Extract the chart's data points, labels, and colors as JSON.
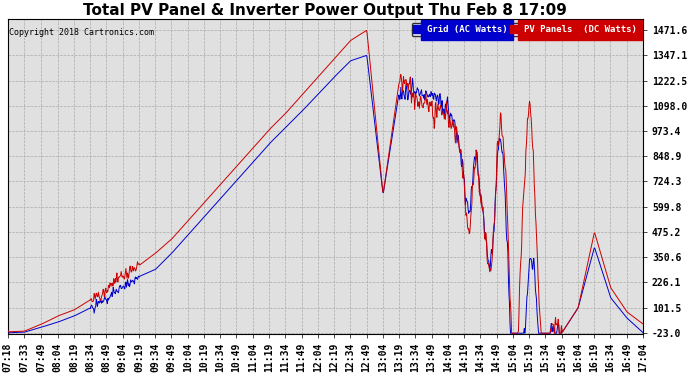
{
  "title": "Total PV Panel & Inverter Power Output Thu Feb 8 17:09",
  "copyright": "Copyright 2018 Cartronics.com",
  "legend_grid": "Grid (AC Watts)",
  "legend_pv": "PV Panels  (DC Watts)",
  "yticks": [
    1471.6,
    1347.1,
    1222.5,
    1098.0,
    973.4,
    848.9,
    724.3,
    599.8,
    475.2,
    350.6,
    226.1,
    101.5,
    -23.0
  ],
  "xtick_labels": [
    "07:18",
    "07:33",
    "07:49",
    "08:04",
    "08:19",
    "08:34",
    "08:49",
    "09:04",
    "09:19",
    "09:34",
    "09:49",
    "10:04",
    "10:19",
    "10:34",
    "10:49",
    "11:04",
    "11:19",
    "11:34",
    "11:49",
    "12:04",
    "12:19",
    "12:34",
    "12:49",
    "13:04",
    "13:19",
    "13:34",
    "13:49",
    "14:04",
    "14:19",
    "14:34",
    "14:49",
    "15:04",
    "15:19",
    "15:34",
    "15:49",
    "16:04",
    "16:19",
    "16:34",
    "16:49",
    "17:04"
  ],
  "ymin": -23.0,
  "ymax": 1471.6,
  "grid_color": "#aaaaaa",
  "background_color": "#ffffff",
  "plot_bg": "#e0e0e0",
  "blue_color": "#0000cc",
  "red_color": "#cc0000",
  "title_fontsize": 11,
  "tick_fontsize": 7
}
